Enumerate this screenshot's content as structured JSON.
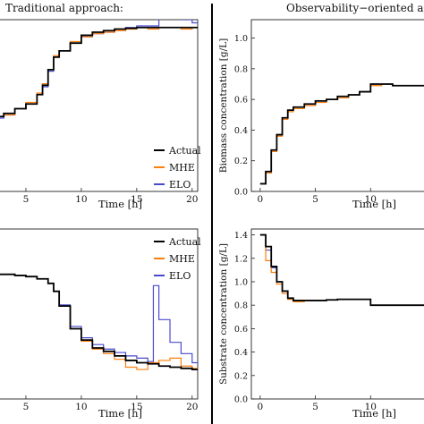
{
  "panels": {
    "left_title": "Traditional approach:",
    "right_title": "Observability−oriented appro"
  },
  "chart_data": [
    {
      "type": "line",
      "xlabel": "Time [h]",
      "ylabel": "",
      "xlim": [
        2.5,
        20.5
      ],
      "ylim": [
        0,
        1.1
      ],
      "xticks": [
        "5",
        "10",
        "15",
        "20"
      ],
      "yticks": [],
      "legend": {
        "placement": "bottom-right",
        "entries": [
          "Actual",
          "MHE",
          "ELO"
        ]
      },
      "series": [
        {
          "name": "Actual",
          "color": "#000000",
          "x": [
            2.5,
            3,
            4,
            5,
            6,
            6.5,
            7,
            7.5,
            8,
            9,
            10,
            11,
            12,
            13,
            14,
            15,
            16,
            17,
            18,
            19,
            20
          ],
          "y": [
            0.48,
            0.5,
            0.53,
            0.56,
            0.62,
            0.68,
            0.78,
            0.86,
            0.9,
            0.95,
            1.0,
            1.02,
            1.03,
            1.04,
            1.045,
            1.05,
            1.05,
            1.05,
            1.05,
            1.05,
            1.05
          ]
        },
        {
          "name": "MHE",
          "color": "#ff7f0e",
          "x": [
            2.5,
            3,
            4,
            5,
            6,
            6.5,
            7,
            7.5,
            8,
            9,
            10,
            11,
            12,
            13,
            14,
            15,
            16,
            17,
            18,
            19,
            20
          ],
          "y": [
            0.48,
            0.49,
            0.53,
            0.57,
            0.63,
            0.69,
            0.78,
            0.87,
            0.9,
            0.96,
            0.99,
            1.01,
            1.02,
            1.03,
            1.04,
            1.05,
            1.04,
            1.05,
            1.05,
            1.04,
            1.05
          ]
        },
        {
          "name": "ELO",
          "color": "#4a4ad0",
          "x": [
            2.5,
            3,
            4,
            5,
            6,
            6.5,
            7,
            7.5,
            8,
            9,
            10,
            11,
            12,
            13,
            14,
            15,
            16,
            17,
            18,
            19,
            20
          ],
          "y": [
            0.47,
            0.49,
            0.53,
            0.56,
            0.62,
            0.67,
            0.77,
            0.86,
            0.9,
            0.95,
            0.99,
            1.01,
            1.02,
            1.04,
            1.05,
            1.06,
            1.06,
            1.26,
            1.13,
            1.1,
            1.08
          ]
        }
      ]
    },
    {
      "type": "line",
      "xlabel": "Time [h]",
      "ylabel": "Biomass concentration [g/L]",
      "xlim": [
        -0.8,
        15
      ],
      "ylim": [
        0,
        1.12
      ],
      "xticks": [
        "0",
        "5",
        "10"
      ],
      "yticks": [
        "0.0",
        "0.2",
        "0.4",
        "0.6",
        "0.8",
        "1.0"
      ],
      "series": [
        {
          "name": "Actual",
          "color": "#000000",
          "x": [
            0,
            0.5,
            1,
            1.5,
            2,
            2.5,
            3,
            4,
            5,
            6,
            7,
            8,
            9,
            10,
            11,
            12,
            13,
            14,
            15
          ],
          "y": [
            0.05,
            0.13,
            0.27,
            0.37,
            0.48,
            0.53,
            0.55,
            0.57,
            0.59,
            0.6,
            0.62,
            0.63,
            0.65,
            0.7,
            0.7,
            0.69,
            0.69,
            0.69,
            0.69
          ]
        },
        {
          "name": "MHE",
          "color": "#ff7f0e",
          "x": [
            0,
            0.5,
            1,
            1.5,
            2,
            2.5,
            3,
            4,
            5,
            6,
            7,
            8,
            9,
            10,
            11,
            12,
            13,
            14,
            15
          ],
          "y": [
            0.05,
            0.12,
            0.26,
            0.36,
            0.47,
            0.52,
            0.54,
            0.56,
            0.58,
            0.6,
            0.61,
            0.63,
            0.65,
            0.69,
            0.7,
            0.69,
            0.69,
            0.69,
            0.69
          ]
        },
        {
          "name": "ELO",
          "color": "#4a4ad0",
          "x": [
            0,
            0.5,
            1,
            1.5,
            2,
            2.5,
            3,
            4,
            5,
            6,
            7,
            8,
            9,
            10,
            11,
            12,
            13,
            14,
            15
          ],
          "y": [
            0.05,
            0.13,
            0.27,
            0.37,
            0.48,
            0.53,
            0.55,
            0.57,
            0.59,
            0.6,
            0.62,
            0.63,
            0.65,
            0.7,
            0.7,
            0.69,
            0.69,
            0.69,
            0.69
          ]
        }
      ]
    },
    {
      "type": "line",
      "xlabel": "Time [h]",
      "ylabel": "",
      "xlim": [
        2.5,
        20.5
      ],
      "ylim": [
        0,
        1.5
      ],
      "xticks": [
        "5",
        "10",
        "15",
        "20"
      ],
      "yticks": [],
      "legend": {
        "placement": "top-right",
        "entries": [
          "Actual",
          "MHE",
          "ELO"
        ]
      },
      "series": [
        {
          "name": "Actual",
          "color": "#000000",
          "x": [
            2.5,
            3,
            4,
            5,
            6,
            7,
            7.5,
            8,
            9,
            10,
            11,
            12,
            13,
            14,
            15,
            16,
            17,
            18,
            19,
            20
          ],
          "y": [
            1.1,
            1.1,
            1.09,
            1.08,
            1.06,
            1.02,
            0.95,
            0.82,
            0.62,
            0.52,
            0.45,
            0.42,
            0.38,
            0.34,
            0.32,
            0.31,
            0.29,
            0.28,
            0.27,
            0.26
          ]
        },
        {
          "name": "MHE",
          "color": "#ff7f0e",
          "x": [
            2.5,
            3,
            4,
            5,
            6,
            7,
            7.5,
            8,
            9,
            10,
            11,
            12,
            13,
            14,
            15,
            16,
            17,
            18,
            19,
            20
          ],
          "y": [
            1.1,
            1.1,
            1.09,
            1.08,
            1.06,
            1.02,
            0.95,
            0.82,
            0.62,
            0.51,
            0.44,
            0.4,
            0.35,
            0.28,
            0.26,
            0.32,
            0.34,
            0.36,
            0.29,
            0.27
          ]
        },
        {
          "name": "ELO",
          "color": "#4a4ad0",
          "x": [
            2.5,
            3,
            4,
            5,
            6,
            7,
            7.5,
            8,
            9,
            10,
            11,
            12,
            13,
            14,
            15,
            16,
            16.5,
            17,
            18,
            19,
            20
          ],
          "y": [
            1.1,
            1.1,
            1.09,
            1.08,
            1.06,
            1.02,
            0.95,
            0.83,
            0.64,
            0.54,
            0.48,
            0.44,
            0.41,
            0.38,
            0.36,
            0.33,
            1.0,
            0.7,
            0.5,
            0.4,
            0.32
          ]
        }
      ]
    },
    {
      "type": "line",
      "xlabel": "Time [h]",
      "ylabel": "Substrate concentration [g/L]",
      "xlim": [
        -0.8,
        15
      ],
      "ylim": [
        0,
        1.45
      ],
      "xticks": [
        "0",
        "5",
        "10"
      ],
      "yticks": [
        "0.0",
        "0.2",
        "0.4",
        "0.6",
        "0.8",
        "1.0",
        "1.2",
        "1.4"
      ],
      "series": [
        {
          "name": "Actual",
          "color": "#000000",
          "x": [
            0,
            0.5,
            1,
            1.5,
            2,
            2.5,
            3,
            4,
            5,
            6,
            7,
            8,
            9,
            10,
            11,
            12,
            13,
            14,
            15
          ],
          "y": [
            1.4,
            1.3,
            1.13,
            1.0,
            0.92,
            0.86,
            0.84,
            0.84,
            0.84,
            0.845,
            0.85,
            0.85,
            0.85,
            0.8,
            0.8,
            0.8,
            0.8,
            0.8,
            0.8
          ]
        },
        {
          "name": "MHE",
          "color": "#ff7f0e",
          "x": [
            0,
            0.5,
            1,
            1.5,
            2,
            2.5,
            3,
            4,
            5,
            6,
            7,
            8,
            9,
            10,
            11,
            12,
            13,
            14,
            15
          ],
          "y": [
            1.4,
            1.18,
            1.08,
            0.98,
            0.9,
            0.85,
            0.83,
            0.84,
            0.84,
            0.845,
            0.85,
            0.85,
            0.85,
            0.8,
            0.8,
            0.8,
            0.8,
            0.8,
            0.8
          ]
        },
        {
          "name": "ELO",
          "color": "#4a4ad0",
          "x": [
            0,
            0.5,
            1,
            1.5,
            2,
            2.5,
            3,
            4,
            5,
            6,
            7,
            8,
            9,
            10,
            11,
            12,
            13,
            14,
            15
          ],
          "y": [
            1.4,
            1.27,
            1.12,
            1.0,
            0.92,
            0.86,
            0.84,
            0.84,
            0.84,
            0.845,
            0.85,
            0.85,
            0.85,
            0.8,
            0.8,
            0.8,
            0.8,
            0.8,
            0.8
          ]
        }
      ]
    }
  ]
}
